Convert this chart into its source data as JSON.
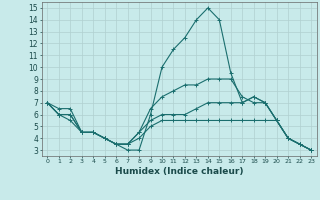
{
  "title": "",
  "xlabel": "Humidex (Indice chaleur)",
  "ylabel": "",
  "background_color": "#c8eaea",
  "grid_color": "#b0d0d0",
  "line_color": "#1a6e6e",
  "xlim": [
    -0.5,
    23.5
  ],
  "ylim": [
    2.5,
    15.5
  ],
  "xticks": [
    0,
    1,
    2,
    3,
    4,
    5,
    6,
    7,
    8,
    9,
    10,
    11,
    12,
    13,
    14,
    15,
    16,
    17,
    18,
    19,
    20,
    21,
    22,
    23
  ],
  "yticks": [
    3,
    4,
    5,
    6,
    7,
    8,
    9,
    10,
    11,
    12,
    13,
    14,
    15
  ],
  "lines": [
    {
      "x": [
        0,
        1,
        2,
        3,
        4,
        5,
        6,
        7,
        8,
        9,
        10,
        11,
        12,
        13,
        14,
        15,
        16,
        17,
        18,
        19,
        20,
        21,
        22,
        23
      ],
      "y": [
        7,
        6.5,
        6.5,
        4.5,
        4.5,
        4,
        3.5,
        3,
        3,
        6,
        10,
        11.5,
        12.5,
        14,
        15,
        14,
        9.5,
        7,
        7.5,
        7,
        5.5,
        4,
        3.5,
        3
      ]
    },
    {
      "x": [
        0,
        1,
        2,
        3,
        4,
        5,
        6,
        7,
        8,
        9,
        10,
        11,
        12,
        13,
        14,
        15,
        16,
        17,
        18,
        19,
        20,
        21,
        22,
        23
      ],
      "y": [
        7,
        6,
        6,
        4.5,
        4.5,
        4,
        3.5,
        3.5,
        4,
        5,
        5.5,
        5.5,
        5.5,
        5.5,
        5.5,
        5.5,
        5.5,
        5.5,
        5.5,
        5.5,
        5.5,
        4,
        3.5,
        3
      ]
    },
    {
      "x": [
        0,
        1,
        2,
        3,
        4,
        5,
        6,
        7,
        8,
        9,
        10,
        11,
        12,
        13,
        14,
        15,
        16,
        17,
        18,
        19,
        20,
        21,
        22,
        23
      ],
      "y": [
        7,
        6,
        5.5,
        4.5,
        4.5,
        4,
        3.5,
        3.5,
        4.5,
        5.5,
        6,
        6,
        6,
        6.5,
        7,
        7,
        7,
        7,
        7.5,
        7,
        5.5,
        4,
        3.5,
        3
      ]
    },
    {
      "x": [
        0,
        1,
        2,
        3,
        4,
        5,
        6,
        7,
        8,
        9,
        10,
        11,
        12,
        13,
        14,
        15,
        16,
        17,
        18,
        19,
        20,
        21,
        22,
        23
      ],
      "y": [
        7,
        6,
        6,
        4.5,
        4.5,
        4,
        3.5,
        3.5,
        4.5,
        6.5,
        7.5,
        8,
        8.5,
        8.5,
        9,
        9,
        9,
        7.5,
        7,
        7,
        5.5,
        4,
        3.5,
        3
      ]
    }
  ]
}
